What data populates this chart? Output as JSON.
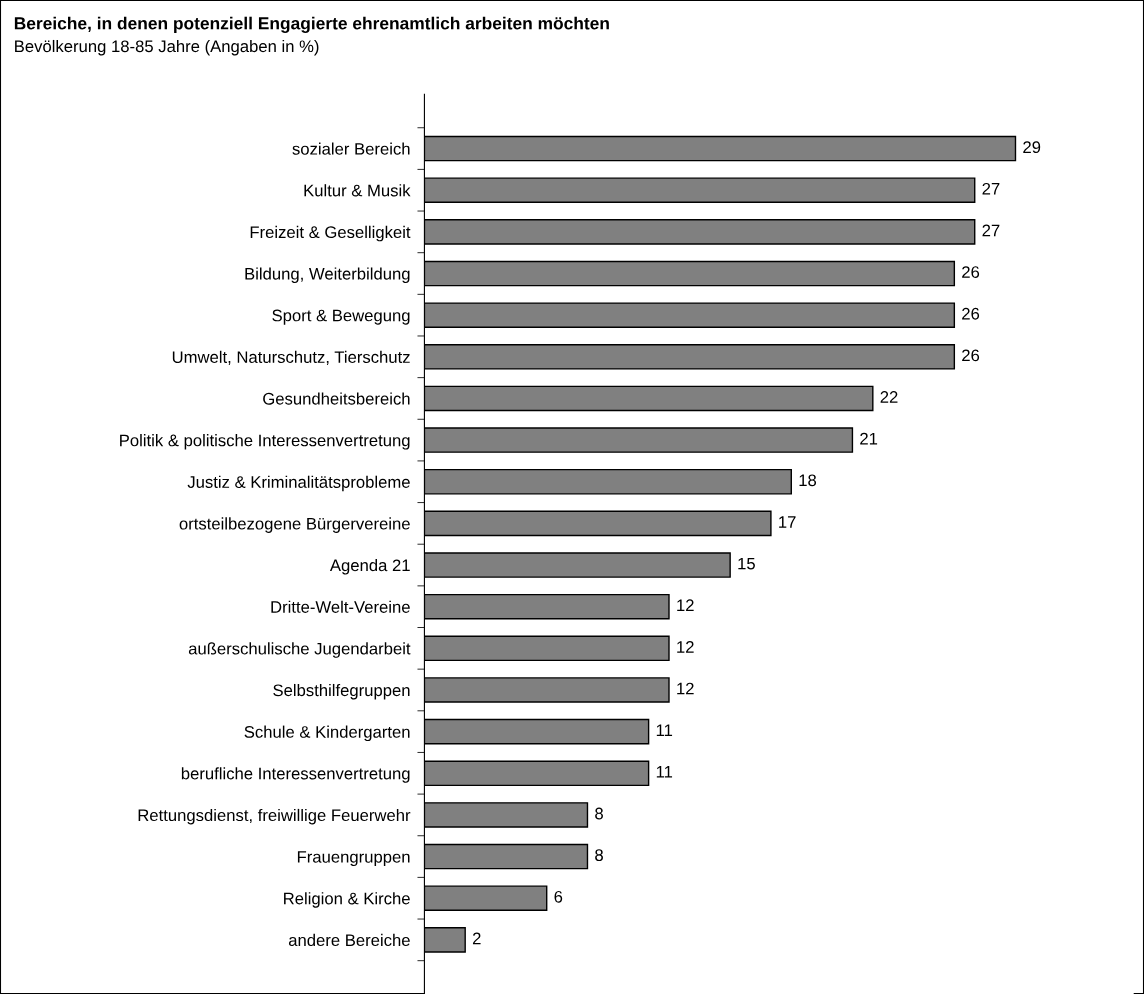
{
  "chart_data": {
    "type": "bar",
    "orientation": "horizontal",
    "title": "Bereiche, in denen potenziell Engagierte ehrenamtlich arbeiten möchten",
    "subtitle": "Bevölkerung 18-85 Jahre (Angaben in %)",
    "categories": [
      "sozialer Bereich",
      "Kultur & Musik",
      "Freizeit & Geselligkeit",
      "Bildung, Weiterbildung",
      "Sport & Bewegung",
      "Umwelt, Naturschutz, Tierschutz",
      "Gesundheitsbereich",
      "Politik & politische Interessenvertretung",
      "Justiz & Kriminalitätsprobleme",
      "ortsteilbezogene Bürgervereine",
      "Agenda 21",
      "Dritte-Welt-Vereine",
      "außerschulische Jugendarbeit",
      "Selbsthilfegruppen",
      "Schule & Kindergarten",
      "berufliche Interessenvertretung",
      "Rettungsdienst, freiwillige Feuerwehr",
      "Frauengruppen",
      "Religion & Kirche",
      "andere Bereiche"
    ],
    "values": [
      29,
      27,
      27,
      26,
      26,
      26,
      22,
      21,
      18,
      17,
      15,
      12,
      12,
      12,
      11,
      11,
      8,
      8,
      6,
      2
    ],
    "color": "#808080",
    "data_labels": true,
    "grid": false,
    "legend": false
  }
}
